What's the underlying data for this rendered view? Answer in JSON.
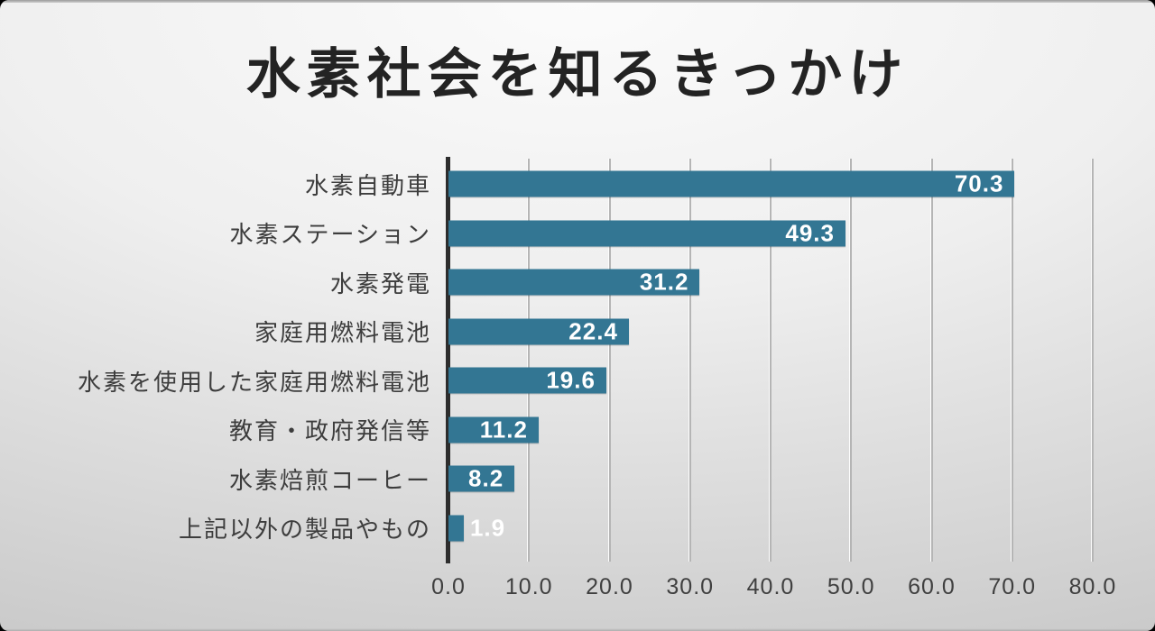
{
  "slide": {
    "title": "水素社会を知るきっかけ"
  },
  "chart_data": {
    "type": "bar",
    "orientation": "horizontal",
    "title": "水素社会を知るきっかけ",
    "categories": [
      "水素自動車",
      "水素ステーション",
      "水素発電",
      "家庭用燃料電池",
      "水素を使用した家庭用燃料電池",
      "教育・政府発信等",
      "水素焙煎コーヒー",
      "上記以外の製品やもの"
    ],
    "values": [
      70.3,
      49.3,
      31.2,
      22.4,
      19.6,
      11.2,
      8.2,
      1.9
    ],
    "value_labels": [
      "70.3",
      "49.3",
      "31.2",
      "22.4",
      "19.6",
      "11.2",
      "8.2",
      "1.9"
    ],
    "x_ticks": [
      "0.0",
      "10.0",
      "20.0",
      "30.0",
      "40.0",
      "50.0",
      "60.0",
      "70.0",
      "80.0"
    ],
    "xlim": [
      0,
      80
    ],
    "xlabel": "",
    "ylabel": "",
    "grid": true,
    "legend": false,
    "bar_color": "#337693",
    "value_label_color": "#ffffff",
    "axis_line_color": "#2d2d2d"
  }
}
